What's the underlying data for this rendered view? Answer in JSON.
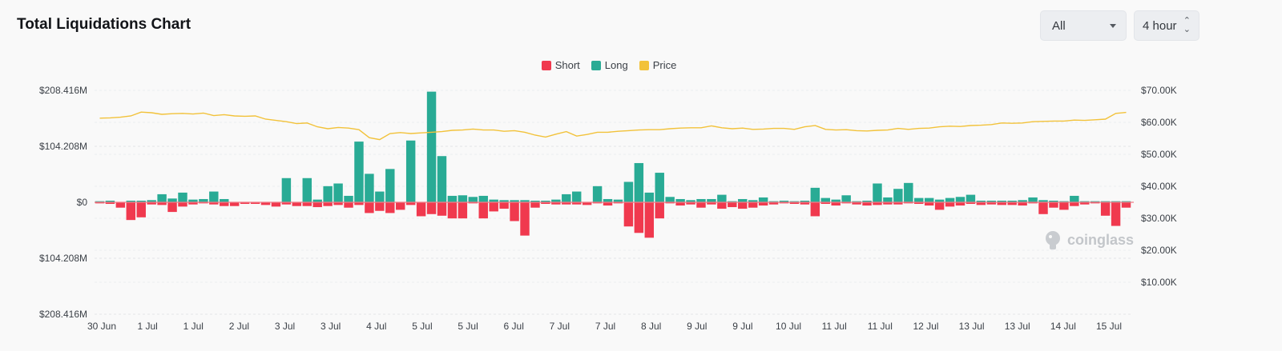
{
  "header": {
    "title": "Total Liquidations Chart",
    "range_select": "All",
    "interval_select": "4 hour"
  },
  "brand": {
    "watermark": "coinglass"
  },
  "colors": {
    "short": "#f0394e",
    "long": "#29ab95",
    "price": "#f2c23a",
    "zero_line": "#f07d89"
  },
  "chart_data": {
    "type": "bar",
    "title": "Total Liquidations Chart",
    "legend": [
      "Short",
      "Long",
      "Price"
    ],
    "legend_position": "top-center",
    "grid": true,
    "left_axis": {
      "ticks": [
        "$208.416M",
        "$104.208M",
        "$0",
        "$104.208M",
        "$208.416M"
      ],
      "range": [
        -208.416,
        208.416
      ],
      "unit": "$M"
    },
    "right_axis": {
      "ticks": [
        "$70.00K",
        "$60.00K",
        "$50.00K",
        "$40.00K",
        "$30.00K",
        "$20.00K",
        "$10.00K"
      ],
      "range": [
        0,
        70
      ]
    },
    "x_labels": [
      "30 Jun",
      "1 Jul",
      "1 Jul",
      "2 Jul",
      "3 Jul",
      "3 Jul",
      "4 Jul",
      "5 Jul",
      "5 Jul",
      "6 Jul",
      "7 Jul",
      "7 Jul",
      "8 Jul",
      "9 Jul",
      "9 Jul",
      "10 Jul",
      "11 Jul",
      "11 Jul",
      "12 Jul",
      "13 Jul",
      "13 Jul",
      "14 Jul",
      "15 Jul"
    ],
    "series": [
      {
        "name": "Long",
        "values": [
          2,
          3,
          0,
          3,
          3,
          4,
          15,
          7,
          18,
          5,
          6,
          20,
          6,
          0,
          0,
          0,
          0,
          0,
          45,
          0,
          45,
          5,
          30,
          35,
          12,
          113,
          53,
          20,
          62,
          0,
          115,
          0,
          206,
          86,
          12,
          13,
          10,
          12,
          5,
          4,
          4,
          4,
          3,
          3,
          5,
          15,
          20,
          0,
          30,
          6,
          5,
          38,
          73,
          18,
          55,
          10,
          6,
          4,
          6,
          6,
          14,
          2,
          6,
          4,
          9,
          2,
          3,
          2,
          3,
          27,
          8,
          5,
          13,
          2,
          3,
          35,
          9,
          25,
          36,
          8,
          8,
          5,
          8,
          10,
          14,
          3,
          3,
          3,
          3,
          4,
          9,
          4,
          3,
          2,
          12,
          2,
          2,
          2,
          2,
          2
        ]
      },
      {
        "name": "Short",
        "values": [
          2,
          3,
          10,
          33,
          28,
          4,
          5,
          18,
          8,
          4,
          2,
          4,
          7,
          7,
          3,
          3,
          5,
          8,
          4,
          7,
          7,
          9,
          7,
          5,
          10,
          5,
          20,
          16,
          20,
          14,
          5,
          26,
          22,
          25,
          30,
          30,
          2,
          30,
          17,
          12,
          35,
          62,
          10,
          3,
          4,
          4,
          4,
          5,
          2,
          6,
          2,
          45,
          57,
          66,
          30,
          2,
          6,
          4,
          10,
          4,
          12,
          9,
          12,
          10,
          6,
          4,
          2,
          3,
          4,
          26,
          3,
          6,
          2,
          4,
          6,
          5,
          4,
          4,
          2,
          3,
          6,
          14,
          8,
          6,
          3,
          5,
          4,
          5,
          5,
          6,
          2,
          22,
          10,
          14,
          7,
          4,
          2,
          25,
          44,
          10
        ]
      },
      {
        "name": "Price",
        "values": [
          61.3,
          61.4,
          61.6,
          62.0,
          63.2,
          63.0,
          62.5,
          62.7,
          62.8,
          62.6,
          62.9,
          62.1,
          62.4,
          62.0,
          61.9,
          62.0,
          61.0,
          60.6,
          60.2,
          59.6,
          59.8,
          58.6,
          58.0,
          58.4,
          58.2,
          57.7,
          55.2,
          54.6,
          56.5,
          56.8,
          56.5,
          56.7,
          56.9,
          57.1,
          57.5,
          57.6,
          57.9,
          57.6,
          57.6,
          57.2,
          57.4,
          56.9,
          56.0,
          55.4,
          56.3,
          57.1,
          55.7,
          56.2,
          56.9,
          56.9,
          57.2,
          57.4,
          57.6,
          57.7,
          57.7,
          58.0,
          58.2,
          58.3,
          58.3,
          58.9,
          58.3,
          58.0,
          58.2,
          57.8,
          57.9,
          58.1,
          58.1,
          57.8,
          58.6,
          59.0,
          57.8,
          57.6,
          57.7,
          57.4,
          57.3,
          57.5,
          57.6,
          58.1,
          57.8,
          58.1,
          58.2,
          58.6,
          58.8,
          58.7,
          59.0,
          59.1,
          59.3,
          59.8,
          59.7,
          59.8,
          60.2,
          60.3,
          60.4,
          60.4,
          60.7,
          60.6,
          60.8,
          61.0,
          62.8,
          63.1
        ]
      }
    ]
  }
}
